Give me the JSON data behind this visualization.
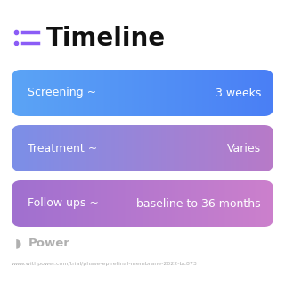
{
  "title": "Timeline",
  "title_icon_color": "#8B5CF6",
  "background_color": "#ffffff",
  "rows": [
    {
      "label": "Screening ~",
      "value": "3 weeks",
      "gradient_left": "#5BA4F5",
      "gradient_right": "#4A7FF5"
    },
    {
      "label": "Treatment ~",
      "value": "Varies",
      "gradient_left": "#7B8FE8",
      "gradient_right": "#B87AC8"
    },
    {
      "label": "Follow ups ~",
      "value": "baseline to 36 months",
      "gradient_left": "#A070D0",
      "gradient_right": "#CC80CC"
    }
  ],
  "footer_logo_text": "Power",
  "footer_url": "www.withpower.com/trial/phase-epiretinal-membrane-2022-bc873",
  "footer_color": "#b0b0b0",
  "fig_width": 3.2,
  "fig_height": 3.27,
  "dpi": 100
}
